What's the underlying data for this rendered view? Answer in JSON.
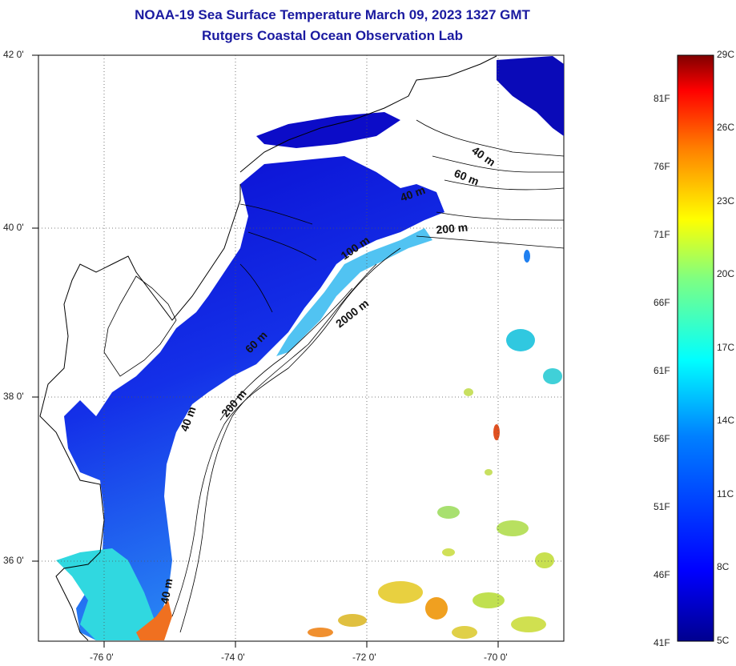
{
  "title": "NOAA-19 Sea Surface Temperature March 09, 2023 1327 GMT",
  "subtitle": "Rutgers Coastal Ocean Observation Lab",
  "axes": {
    "lat_labels": [
      "42 0'",
      "40 0'",
      "38 0'",
      "36 0'"
    ],
    "lon_labels": [
      "-76 0'",
      "-74 0'",
      "-72 0'",
      "-70 0'"
    ]
  },
  "contours": {
    "labels": [
      "40 m",
      "60 m",
      "40 m",
      "200 m",
      "100 m",
      "2000 m",
      "60 m",
      "200 m",
      "40 m",
      "40 m"
    ]
  },
  "colorbar": {
    "celsius": [
      "29C",
      "26C",
      "23C",
      "20C",
      "17C",
      "14C",
      "11C",
      "8C",
      "5C"
    ],
    "fahrenheit": [
      "81F",
      "76F",
      "71F",
      "66F",
      "61F",
      "56F",
      "51F",
      "46F",
      "41F"
    ],
    "colors": [
      "#00008f",
      "#0000ff",
      "#0080ff",
      "#00ffff",
      "#80ff80",
      "#ffff00",
      "#ff8000",
      "#ff0000",
      "#800000"
    ]
  },
  "colors": {
    "title": "#1a1aa0",
    "sea_cold": "#1010d8",
    "sea_cool": "#1e60f0",
    "sea_warm": "#40e0e0"
  }
}
